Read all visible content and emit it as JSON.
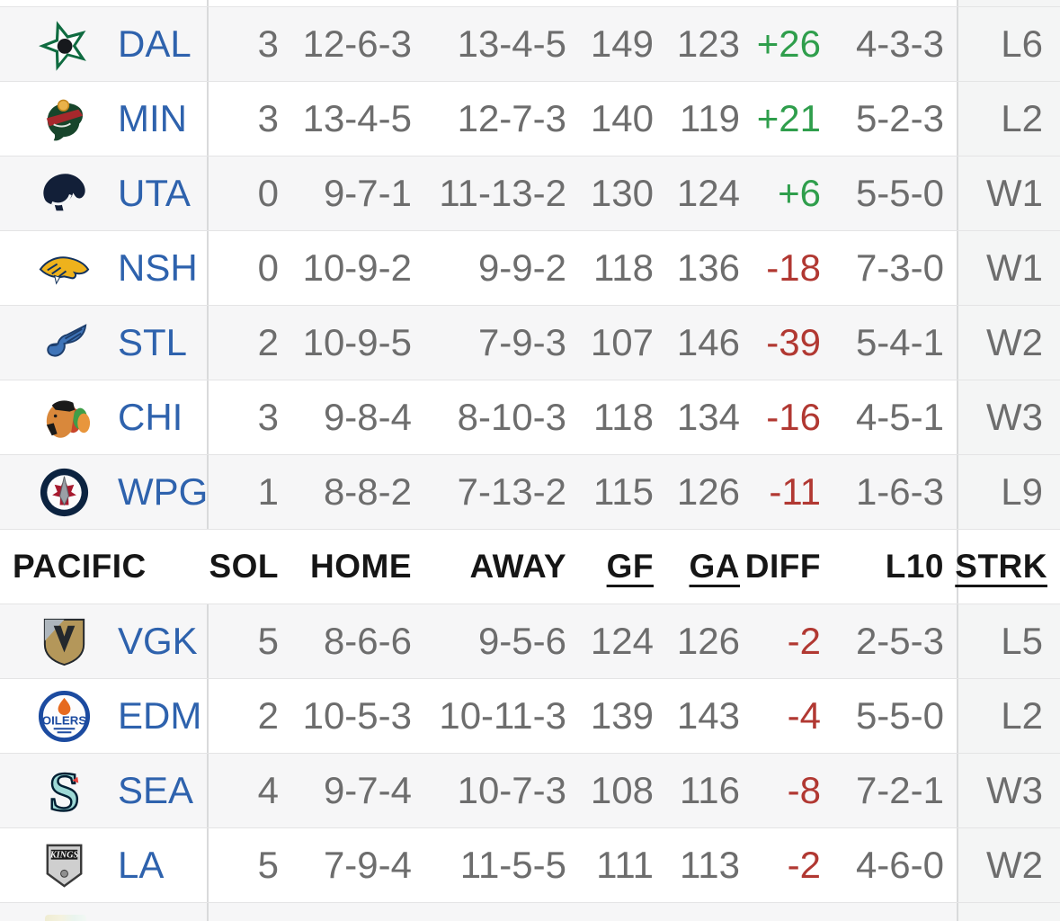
{
  "header_row": {
    "division_label": "PACIFIC",
    "columns": [
      "SOL",
      "HOME",
      "AWAY",
      "GF",
      "GA",
      "DIFF",
      "L10",
      "STRK"
    ],
    "underlined_columns": [
      "GF",
      "GA",
      "STRK"
    ]
  },
  "central_rows": [
    {
      "team": "DAL",
      "logo_icon": "dallas-stars-logo",
      "sol": "3",
      "home": "12-6-3",
      "away": "13-4-5",
      "gf": "149",
      "ga": "123",
      "diff": "+26",
      "l10": "4-3-3",
      "strk": "L6"
    },
    {
      "team": "MIN",
      "logo_icon": "minnesota-wild-logo",
      "sol": "3",
      "home": "13-4-5",
      "away": "12-7-3",
      "gf": "140",
      "ga": "119",
      "diff": "+21",
      "l10": "5-2-3",
      "strk": "L2"
    },
    {
      "team": "UTA",
      "logo_icon": "utah-mammoth-logo",
      "sol": "0",
      "home": "9-7-1",
      "away": "11-13-2",
      "gf": "130",
      "ga": "124",
      "diff": "+6",
      "l10": "5-5-0",
      "strk": "W1"
    },
    {
      "team": "NSH",
      "logo_icon": "nashville-predators-logo",
      "sol": "0",
      "home": "10-9-2",
      "away": "9-9-2",
      "gf": "118",
      "ga": "136",
      "diff": "-18",
      "l10": "7-3-0",
      "strk": "W1"
    },
    {
      "team": "STL",
      "logo_icon": "st-louis-blues-logo",
      "sol": "2",
      "home": "10-9-5",
      "away": "7-9-3",
      "gf": "107",
      "ga": "146",
      "diff": "-39",
      "l10": "5-4-1",
      "strk": "W2"
    },
    {
      "team": "CHI",
      "logo_icon": "chicago-blackhawks-logo",
      "sol": "3",
      "home": "9-8-4",
      "away": "8-10-3",
      "gf": "118",
      "ga": "134",
      "diff": "-16",
      "l10": "4-5-1",
      "strk": "W3"
    },
    {
      "team": "WPG",
      "logo_icon": "winnipeg-jets-logo",
      "sol": "1",
      "home": "8-8-2",
      "away": "7-13-2",
      "gf": "115",
      "ga": "126",
      "diff": "-11",
      "l10": "1-6-3",
      "strk": "L9"
    }
  ],
  "pacific_rows": [
    {
      "team": "VGK",
      "logo_icon": "vegas-golden-knights-logo",
      "sol": "5",
      "home": "8-6-6",
      "away": "9-5-6",
      "gf": "124",
      "ga": "126",
      "diff": "-2",
      "l10": "2-5-3",
      "strk": "L5"
    },
    {
      "team": "EDM",
      "logo_icon": "edmonton-oilers-logo",
      "sol": "2",
      "home": "10-5-3",
      "away": "10-11-3",
      "gf": "139",
      "ga": "143",
      "diff": "-4",
      "l10": "5-5-0",
      "strk": "L2"
    },
    {
      "team": "SEA",
      "logo_icon": "seattle-kraken-logo",
      "sol": "4",
      "home": "9-7-4",
      "away": "10-7-3",
      "gf": "108",
      "ga": "116",
      "diff": "-8",
      "l10": "7-2-1",
      "strk": "W3"
    },
    {
      "team": "LA",
      "logo_icon": "la-kings-logo",
      "sol": "5",
      "home": "7-9-4",
      "away": "11-5-5",
      "gf": "111",
      "ga": "113",
      "diff": "-2",
      "l10": "4-6-0",
      "strk": "W2"
    }
  ],
  "colors": {
    "link_blue": "#2e62ad",
    "positive_green": "#2f9e4c",
    "negative_red": "#b13832",
    "row_stripe": "#f6f6f7",
    "strk_column_bg": "#f4f5f5",
    "divider": "#d9dadb",
    "row_border": "#e4e4e5",
    "stat_text": "#6d6d6d",
    "header_text": "#161616"
  }
}
